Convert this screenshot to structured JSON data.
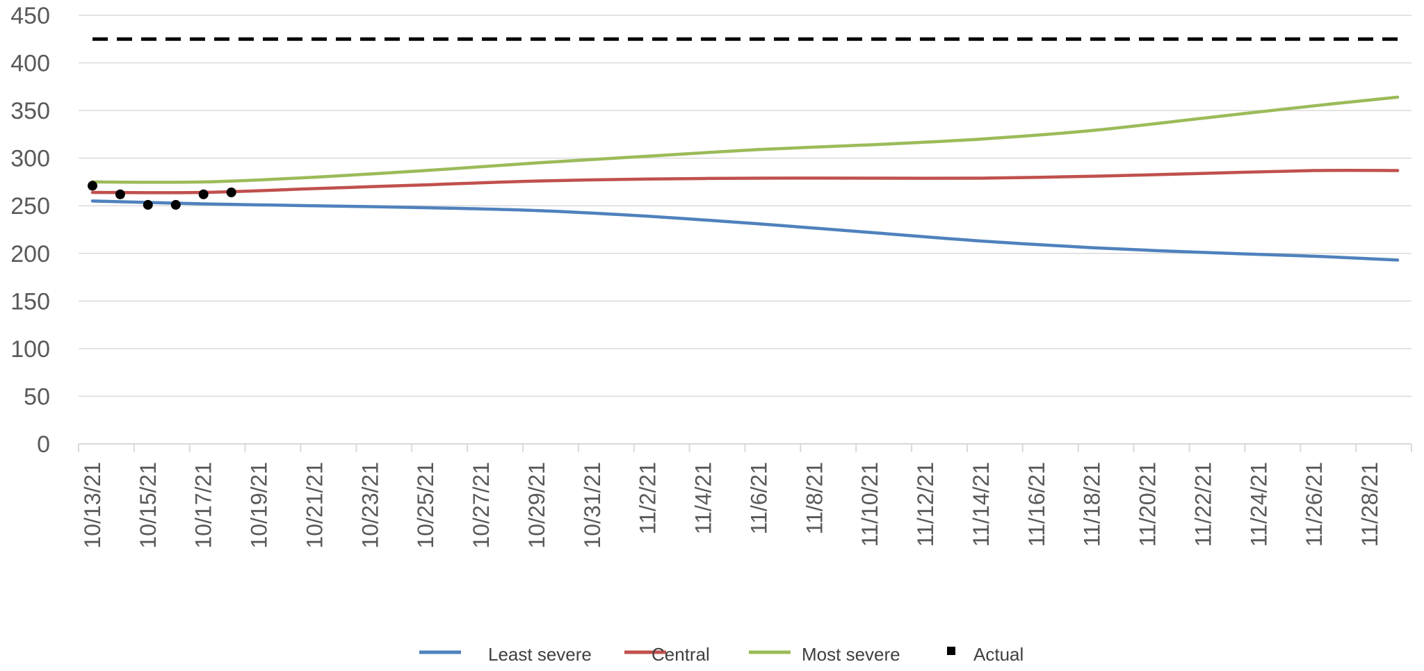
{
  "chart_data": {
    "type": "line",
    "title": "",
    "xlabel": "",
    "ylabel": "",
    "ylim": [
      0,
      450
    ],
    "yticks": [
      "0",
      "50",
      "100",
      "150",
      "200",
      "250",
      "300",
      "350",
      "400",
      "450"
    ],
    "x_tick_labels": [
      "10/13/21",
      "10/15/21",
      "10/17/21",
      "10/19/21",
      "10/21/21",
      "10/23/21",
      "10/25/21",
      "10/27/21",
      "10/29/21",
      "10/31/21",
      "11/2/21",
      "11/4/21",
      "11/6/21",
      "11/8/21",
      "11/10/21",
      "11/12/21",
      "11/14/21",
      "11/16/21",
      "11/18/21",
      "11/20/21",
      "11/22/21",
      "11/24/21",
      "11/26/21",
      "11/28/21"
    ],
    "xlim": [
      "10/13/21",
      "11/29/21"
    ],
    "grid": true,
    "legend_position": "bottom",
    "series": [
      {
        "name": "Least severe",
        "color": "#4f81bd",
        "style": "solid",
        "points": [
          [
            "10/13/21",
            255
          ],
          [
            "10/17/21",
            252
          ],
          [
            "10/21/21",
            250
          ],
          [
            "10/25/21",
            248
          ],
          [
            "10/29/21",
            245
          ],
          [
            "11/2/21",
            239
          ],
          [
            "11/6/21",
            231
          ],
          [
            "11/10/21",
            222
          ],
          [
            "11/14/21",
            213
          ],
          [
            "11/18/21",
            206
          ],
          [
            "11/22/21",
            201
          ],
          [
            "11/26/21",
            197
          ],
          [
            "11/29/21",
            193
          ]
        ]
      },
      {
        "name": "Central",
        "color": "#c0504d",
        "style": "solid",
        "points": [
          [
            "10/13/21",
            264
          ],
          [
            "10/17/21",
            264
          ],
          [
            "10/21/21",
            268
          ],
          [
            "10/25/21",
            272
          ],
          [
            "10/29/21",
            276
          ],
          [
            "11/2/21",
            278
          ],
          [
            "11/6/21",
            279
          ],
          [
            "11/10/21",
            279
          ],
          [
            "11/14/21",
            279
          ],
          [
            "11/18/21",
            281
          ],
          [
            "11/22/21",
            284
          ],
          [
            "11/26/21",
            287
          ],
          [
            "11/29/21",
            287
          ]
        ]
      },
      {
        "name": "Most severe",
        "color": "#9bbb59",
        "style": "solid",
        "points": [
          [
            "10/13/21",
            275
          ],
          [
            "10/17/21",
            275
          ],
          [
            "10/21/21",
            280
          ],
          [
            "10/25/21",
            287
          ],
          [
            "10/29/21",
            295
          ],
          [
            "11/2/21",
            302
          ],
          [
            "11/6/21",
            309
          ],
          [
            "11/10/21",
            314
          ],
          [
            "11/14/21",
            320
          ],
          [
            "11/18/21",
            329
          ],
          [
            "11/22/21",
            342
          ],
          [
            "11/26/21",
            355
          ],
          [
            "11/29/21",
            364
          ]
        ]
      },
      {
        "name": "Actual",
        "color": "#000000",
        "style": "markers",
        "points": [
          [
            "10/13/21",
            271
          ],
          [
            "10/14/21",
            262
          ],
          [
            "10/15/21",
            251
          ],
          [
            "10/16/21",
            251
          ],
          [
            "10/17/21",
            262
          ],
          [
            "10/18/21",
            264
          ]
        ]
      },
      {
        "name": "",
        "color": "#000000",
        "style": "dashed",
        "points": [
          [
            "10/13/21",
            425
          ],
          [
            "11/29/21",
            425
          ]
        ]
      }
    ]
  }
}
